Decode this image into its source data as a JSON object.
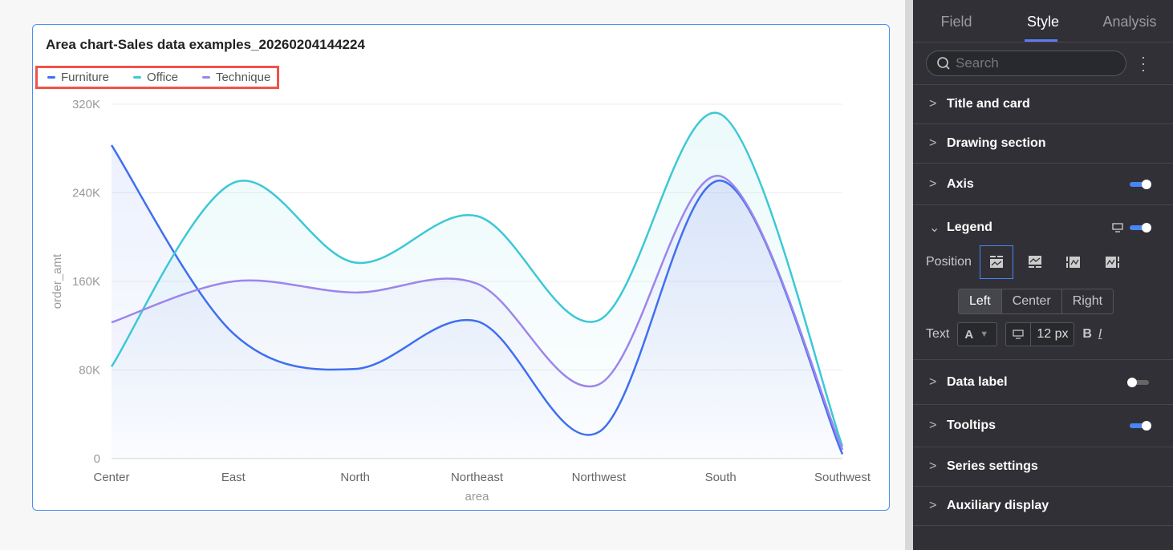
{
  "chart_data": {
    "type": "area",
    "title": "Area chart-Sales data examples_20260204144224",
    "xlabel": "area",
    "ylabel": "order_amt",
    "categories": [
      "Center",
      "East",
      "North",
      "Northeast",
      "Northwest",
      "South",
      "Southwest"
    ],
    "ylim": [
      0,
      320000
    ],
    "yticks": [
      0,
      80000,
      160000,
      240000,
      320000
    ],
    "ytick_labels": [
      "0",
      "80K",
      "160K",
      "240K",
      "320K"
    ],
    "grid": true,
    "legend_position": "top-left",
    "series": [
      {
        "name": "Furniture",
        "color": "#3f6ff0",
        "values": [
          283000,
          113000,
          81000,
          124000,
          24000,
          251000,
          4000
        ]
      },
      {
        "name": "Office",
        "color": "#3cc8d6",
        "values": [
          83000,
          249000,
          177000,
          219000,
          125000,
          311000,
          11000
        ]
      },
      {
        "name": "Technique",
        "color": "#9d85ec",
        "values": [
          123000,
          160000,
          150000,
          158000,
          67000,
          255000,
          8000
        ]
      }
    ]
  },
  "panel": {
    "tabs": [
      "Field",
      "Style",
      "Analysis"
    ],
    "active_tab": "Style",
    "search_placeholder": "Search",
    "sections": [
      {
        "label": "Title and card"
      },
      {
        "label": "Drawing section"
      },
      {
        "label": "Axis",
        "toggle": true
      },
      {
        "label": "Legend",
        "toggle": true,
        "expanded": true
      },
      {
        "label": "Data label",
        "toggle": false
      },
      {
        "label": "Tooltips",
        "toggle": true
      },
      {
        "label": "Series settings"
      },
      {
        "label": "Auxiliary display"
      }
    ],
    "legend": {
      "position_label": "Position",
      "position_selected": "top",
      "align_options": [
        "Left",
        "Center",
        "Right"
      ],
      "align_selected": "Left",
      "text_label": "Text",
      "font_color": "A",
      "font_size": "12",
      "font_unit": "px",
      "bold": "B",
      "italic": "I"
    }
  }
}
